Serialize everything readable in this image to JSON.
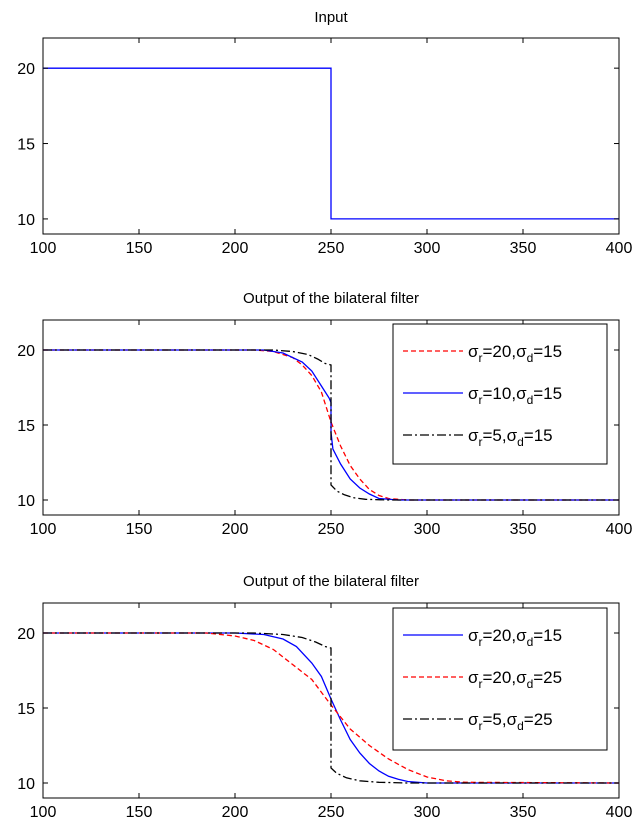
{
  "chart_data": [
    {
      "type": "line",
      "title": "Input",
      "xlim": [
        100,
        400
      ],
      "ylim": [
        9,
        22
      ],
      "xticks": [
        100,
        150,
        200,
        250,
        300,
        350,
        400
      ],
      "yticks": [
        10,
        15,
        20
      ],
      "xtick_labels": [
        "100",
        "150",
        "200",
        "250",
        "300",
        "350",
        "400"
      ],
      "ytick_labels": [
        "10",
        "15",
        "20"
      ],
      "grid": false,
      "legend": null,
      "series": [
        {
          "color": "#0000ff",
          "style": "solid",
          "x": [
            100,
            250,
            250,
            400
          ],
          "y": [
            20,
            20,
            10,
            10
          ]
        }
      ]
    },
    {
      "type": "line",
      "title": "Output of the bilateral filter",
      "xlim": [
        100,
        400
      ],
      "ylim": [
        9,
        22
      ],
      "xticks": [
        100,
        150,
        200,
        250,
        300,
        350,
        400
      ],
      "yticks": [
        10,
        15,
        20
      ],
      "xtick_labels": [
        "100",
        "150",
        "200",
        "250",
        "300",
        "350",
        "400"
      ],
      "ytick_labels": [
        "10",
        "15",
        "20"
      ],
      "grid": false,
      "legend": "top-right",
      "series": [
        {
          "legend_sym_a": "σ",
          "legend_sub_a": "r",
          "legend_val_a": "=20,",
          "legend_sym_b": "σ",
          "legend_sub_b": "d",
          "legend_val_b": "=15",
          "color": "#ff0000",
          "style": "dashed",
          "x": [
            100,
            210,
            220,
            230,
            235,
            240,
            245,
            250,
            255,
            260,
            265,
            270,
            275,
            280,
            290,
            400
          ],
          "y": [
            20,
            20,
            19.9,
            19.5,
            19.0,
            18.3,
            17.2,
            15.2,
            13.6,
            12.3,
            11.4,
            10.7,
            10.3,
            10.1,
            10,
            10
          ]
        },
        {
          "legend_sym_a": "σ",
          "legend_sub_a": "r",
          "legend_val_a": "=10,",
          "legend_sym_b": "σ",
          "legend_sub_b": "d",
          "legend_val_b": "=15",
          "color": "#0000ff",
          "style": "solid",
          "x": [
            100,
            215,
            225,
            235,
            240,
            245,
            249,
            250,
            250,
            251,
            255,
            260,
            265,
            270,
            275,
            285,
            400
          ],
          "y": [
            20,
            20,
            19.8,
            19.2,
            18.6,
            17.6,
            16.8,
            16.5,
            14.5,
            13.4,
            12.4,
            11.4,
            10.8,
            10.4,
            10.1,
            10,
            10
          ]
        },
        {
          "legend_sym_a": "σ",
          "legend_sub_a": "r",
          "legend_val_a": "=5,",
          "legend_sym_b": "σ",
          "legend_sub_b": "d",
          "legend_val_b": "=15",
          "color": "#000000",
          "style": "dashdot",
          "x": [
            100,
            220,
            230,
            238,
            243,
            247,
            250,
            250,
            253,
            257,
            262,
            268,
            280,
            400
          ],
          "y": [
            20,
            20,
            19.9,
            19.7,
            19.4,
            19.1,
            19.0,
            11.0,
            10.6,
            10.35,
            10.15,
            10.05,
            10,
            10
          ]
        }
      ]
    },
    {
      "type": "line",
      "title": "Output of the bilateral filter",
      "xlim": [
        100,
        400
      ],
      "ylim": [
        9,
        22
      ],
      "xticks": [
        100,
        150,
        200,
        250,
        300,
        350,
        400
      ],
      "yticks": [
        10,
        15,
        20
      ],
      "xtick_labels": [
        "100",
        "150",
        "200",
        "250",
        "300",
        "350",
        "400"
      ],
      "ytick_labels": [
        "10",
        "15",
        "20"
      ],
      "grid": false,
      "legend": "top-right",
      "series": [
        {
          "legend_sym_a": "σ",
          "legend_sub_a": "r",
          "legend_val_a": "=20,",
          "legend_sym_b": "σ",
          "legend_sub_b": "d",
          "legend_val_b": "=15",
          "color": "#0000ff",
          "style": "solid",
          "x": [
            100,
            200,
            215,
            225,
            232,
            240,
            245,
            250,
            255,
            260,
            265,
            270,
            275,
            280,
            285,
            290,
            300,
            400
          ],
          "y": [
            20,
            20,
            19.9,
            19.6,
            19.1,
            18.0,
            17.1,
            15.6,
            14.2,
            12.9,
            12.0,
            11.3,
            10.8,
            10.45,
            10.25,
            10.1,
            10,
            10
          ]
        },
        {
          "legend_sym_a": "σ",
          "legend_sub_a": "r",
          "legend_val_a": "=20,",
          "legend_sym_b": "σ",
          "legend_sub_b": "d",
          "legend_val_b": "=25",
          "color": "#ff0000",
          "style": "dashed",
          "x": [
            100,
            185,
            200,
            210,
            220,
            230,
            240,
            250,
            260,
            270,
            280,
            290,
            300,
            310,
            320,
            400
          ],
          "y": [
            20,
            20,
            19.8,
            19.5,
            18.9,
            17.9,
            16.9,
            15.2,
            13.6,
            12.5,
            11.6,
            10.9,
            10.4,
            10.15,
            10.05,
            10
          ]
        },
        {
          "legend_sym_a": "σ",
          "legend_sub_a": "r",
          "legend_val_a": "=5,",
          "legend_sym_b": "σ",
          "legend_sub_b": "d",
          "legend_val_b": "=25",
          "color": "#000000",
          "style": "dashdot",
          "x": [
            100,
            210,
            225,
            235,
            242,
            247,
            250,
            250,
            253,
            258,
            265,
            275,
            290,
            400
          ],
          "y": [
            20,
            20,
            19.9,
            19.7,
            19.4,
            19.1,
            19.0,
            11.0,
            10.65,
            10.35,
            10.15,
            10.05,
            10,
            10
          ]
        }
      ]
    }
  ]
}
